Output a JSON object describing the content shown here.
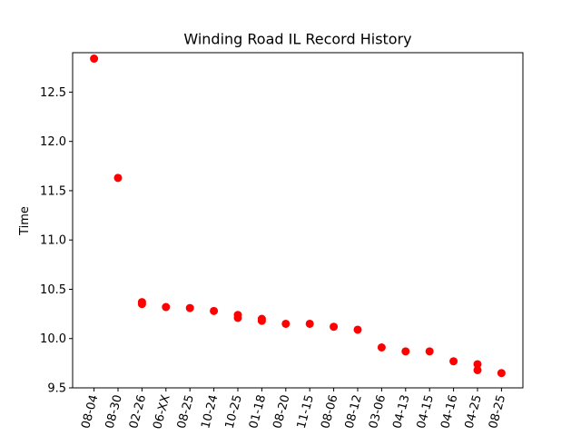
{
  "chart_data": {
    "type": "scatter",
    "title": "Winding Road IL Record History",
    "xlabel": "",
    "ylabel": "Time",
    "ylim": [
      9.5,
      12.9
    ],
    "yticks": [
      "9.5",
      "10.0",
      "10.5",
      "11.0",
      "11.5",
      "12.0",
      "12.5"
    ],
    "categories": [
      "08-04",
      "08-30",
      "02-26",
      "06-XX",
      "08-25",
      "10-24",
      "10-25",
      "01-18",
      "08-20",
      "11-15",
      "08-06",
      "08-12",
      "03-06",
      "04-13",
      "04-15",
      "04-16",
      "04-25",
      "08-25"
    ],
    "points": [
      {
        "x": 0,
        "y": 12.84
      },
      {
        "x": 1,
        "y": 11.63
      },
      {
        "x": 2,
        "y": 10.37
      },
      {
        "x": 2,
        "y": 10.35
      },
      {
        "x": 3,
        "y": 10.32
      },
      {
        "x": 4,
        "y": 10.31
      },
      {
        "x": 5,
        "y": 10.28
      },
      {
        "x": 6,
        "y": 10.24
      },
      {
        "x": 6,
        "y": 10.21
      },
      {
        "x": 7,
        "y": 10.2
      },
      {
        "x": 7,
        "y": 10.18
      },
      {
        "x": 8,
        "y": 10.15
      },
      {
        "x": 9,
        "y": 10.15
      },
      {
        "x": 10,
        "y": 10.12
      },
      {
        "x": 11,
        "y": 10.09
      },
      {
        "x": 12,
        "y": 9.91
      },
      {
        "x": 13,
        "y": 9.87
      },
      {
        "x": 14,
        "y": 9.87
      },
      {
        "x": 15,
        "y": 9.77
      },
      {
        "x": 16,
        "y": 9.74
      },
      {
        "x": 16,
        "y": 9.68
      },
      {
        "x": 17,
        "y": 9.65
      }
    ],
    "marker_color": "#ff0000",
    "grid": false,
    "legend": "none"
  }
}
